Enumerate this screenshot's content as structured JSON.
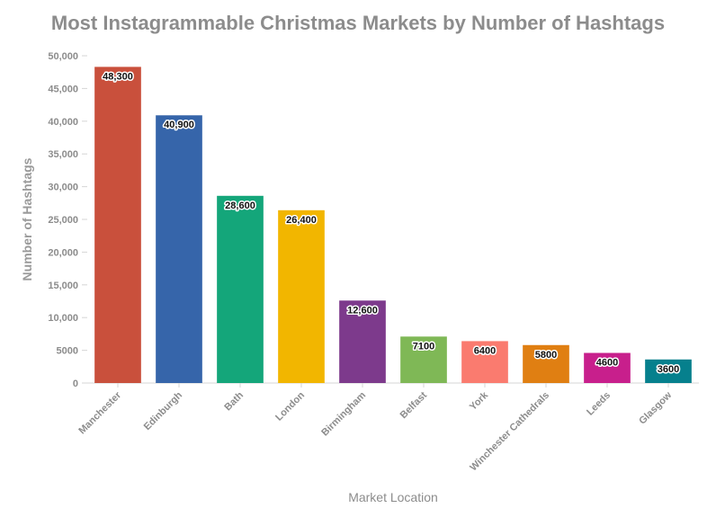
{
  "chart_data": {
    "type": "bar",
    "title": "Most Instagrammable Christmas Markets by Number of Hashtags",
    "xlabel": "Market Location",
    "ylabel": "Number of Hashtags",
    "ylim": [
      0,
      50000
    ],
    "yticks": [
      0,
      5000,
      10000,
      15000,
      20000,
      25000,
      30000,
      35000,
      40000,
      45000,
      50000
    ],
    "ytick_labels": [
      "0",
      "5000",
      "10,000",
      "15,000",
      "20,000",
      "25,000",
      "30,000",
      "35,000",
      "40,000",
      "45,000",
      "50,000"
    ],
    "grid": false,
    "legend": "none",
    "categories": [
      "Manchester",
      "Edinburgh",
      "Bath",
      "London",
      "Birmingham",
      "Belfast",
      "York",
      "Winchester Cathedrals",
      "Leeds",
      "Glasgow"
    ],
    "values": [
      48300,
      40900,
      28600,
      26400,
      12600,
      7100,
      6400,
      5800,
      4600,
      3600
    ],
    "value_labels": [
      "48,300",
      "40,900",
      "28,600",
      "26,400",
      "12,600",
      "7100",
      "6400",
      "5800",
      "4600",
      "3600"
    ],
    "colors": [
      "#c9503c",
      "#3665aa",
      "#14a67a",
      "#f2b600",
      "#7d3a8c",
      "#7fb856",
      "#fa7b6f",
      "#e07f12",
      "#c81f8c",
      "#06808d"
    ]
  }
}
